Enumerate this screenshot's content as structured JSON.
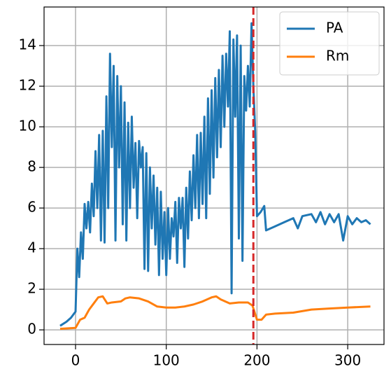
{
  "chart_data": {
    "type": "line",
    "series": [
      {
        "name": "PA",
        "color": "#1f77b4",
        "x": [
          -17,
          -10,
          -5,
          0,
          2,
          4,
          6,
          8,
          10,
          12,
          14,
          16,
          18,
          20,
          22,
          24,
          26,
          28,
          30,
          32,
          34,
          36,
          38,
          40,
          42,
          44,
          46,
          48,
          50,
          52,
          54,
          56,
          58,
          60,
          62,
          64,
          66,
          68,
          70,
          72,
          74,
          76,
          78,
          80,
          82,
          84,
          86,
          88,
          90,
          92,
          94,
          96,
          98,
          100,
          102,
          104,
          106,
          108,
          110,
          112,
          114,
          116,
          118,
          120,
          122,
          124,
          126,
          128,
          130,
          132,
          134,
          136,
          138,
          140,
          142,
          144,
          146,
          148,
          150,
          152,
          154,
          156,
          158,
          160,
          162,
          164,
          166,
          168,
          170,
          172,
          174,
          176,
          178,
          180,
          182,
          184,
          186,
          188,
          190,
          192,
          194,
          196,
          198,
          200,
          204,
          208,
          210,
          220,
          230,
          240,
          245,
          250,
          260,
          265,
          270,
          275,
          280,
          285,
          290,
          295,
          300,
          305,
          310,
          315,
          320,
          325
        ],
        "values": [
          0.2,
          0.4,
          0.6,
          0.9,
          4.0,
          2.6,
          4.8,
          3.5,
          6.2,
          5.0,
          6.3,
          4.8,
          7.2,
          5.6,
          8.8,
          6.0,
          9.6,
          4.4,
          9.8,
          4.3,
          11.5,
          6.0,
          13.6,
          9.0,
          13.0,
          4.4,
          12.5,
          8.0,
          12.0,
          5.2,
          11.2,
          4.4,
          10.2,
          6.0,
          10.5,
          7.0,
          9.2,
          5.5,
          9.3,
          8.0,
          9.0,
          3.0,
          8.7,
          2.9,
          8.0,
          5.0,
          7.6,
          4.2,
          7.0,
          2.7,
          6.8,
          3.5,
          5.8,
          2.7,
          6.0,
          3.5,
          5.5,
          4.6,
          6.3,
          3.3,
          6.5,
          5.0,
          6.5,
          3.1,
          7.0,
          4.5,
          7.8,
          5.4,
          8.6,
          6.0,
          9.6,
          5.5,
          9.7,
          6.2,
          10.5,
          5.5,
          11.4,
          6.7,
          11.8,
          7.5,
          12.4,
          8.5,
          12.8,
          9.0,
          13.5,
          10.0,
          13.6,
          11.0,
          14.7,
          1.8,
          14.3,
          10.5,
          14.5,
          4.5,
          14.0,
          3.4,
          12.5,
          10.8,
          13.0,
          11.0,
          15.1,
          12.0,
          9.8,
          5.6,
          5.8,
          6.1,
          4.9,
          5.1,
          5.3,
          5.5,
          5.0,
          5.6,
          5.7,
          5.3,
          5.8,
          5.2,
          5.7,
          5.3,
          5.7,
          4.4,
          5.6,
          5.2,
          5.5,
          5.3,
          5.4,
          5.2
        ]
      },
      {
        "name": "Rm",
        "color": "#ff7f0e",
        "x": [
          -17,
          0,
          5,
          10,
          15,
          20,
          25,
          30,
          35,
          40,
          50,
          55,
          60,
          70,
          80,
          90,
          100,
          110,
          120,
          130,
          140,
          150,
          155,
          160,
          170,
          180,
          190,
          195,
          200,
          205,
          210,
          220,
          240,
          260,
          280,
          300,
          325
        ],
        "values": [
          0.05,
          0.1,
          0.5,
          0.6,
          1.0,
          1.3,
          1.6,
          1.65,
          1.3,
          1.35,
          1.4,
          1.55,
          1.6,
          1.55,
          1.4,
          1.15,
          1.1,
          1.1,
          1.15,
          1.25,
          1.4,
          1.6,
          1.65,
          1.5,
          1.3,
          1.35,
          1.35,
          1.2,
          0.5,
          0.5,
          0.75,
          0.8,
          0.85,
          1.0,
          1.05,
          1.1,
          1.15
        ]
      }
    ],
    "vline": {
      "x": 196,
      "color": "#d62728"
    },
    "xlim": [
      -34.7,
      340
    ],
    "ylim": [
      -0.72,
      15.9
    ],
    "xticks": [
      0,
      100,
      200,
      300
    ],
    "yticks": [
      0,
      2,
      4,
      6,
      8,
      10,
      12,
      14
    ],
    "grid": true,
    "legend": "upper right"
  }
}
